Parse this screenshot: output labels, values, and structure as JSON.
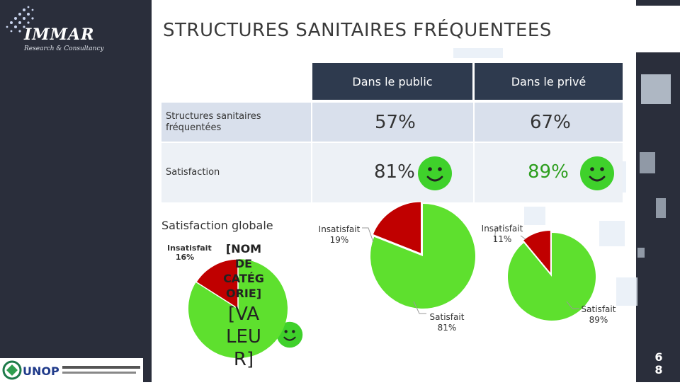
{
  "brand": {
    "logo": "IMMAR",
    "tagline": "Research & Consultancy",
    "partner_logo": "UNOP"
  },
  "title": "STRUCTURES SANITAIRES FRÉQUENTEES",
  "table": {
    "headers": [
      "Dans le public",
      "Dans le privé"
    ],
    "rows": [
      {
        "label": "Structures sanitaires fréquentées",
        "values": [
          "57%",
          "67%"
        ]
      },
      {
        "label": "Satisfaction",
        "values": [
          "81%",
          "89%"
        ]
      }
    ]
  },
  "global": {
    "title": "Satisfaction globale",
    "category_placeholder": "[NOM DE CATÉG ORIE]",
    "value_placeholder": "[VA LEU R]"
  },
  "colors": {
    "satisfied": "#5ee02e",
    "unsatisfied": "#c00000",
    "header": "#2e3a4e",
    "smiley": "#3fd12b"
  },
  "chart_data": [
    {
      "type": "pie",
      "title": "Satisfaction globale",
      "slices": [
        {
          "label": "Insatisfait",
          "value": 16
        },
        {
          "label": "[NOM DE CATÉGORIE]",
          "value": 84
        }
      ]
    },
    {
      "type": "pie",
      "slices": [
        {
          "label": "Insatisfait",
          "value": 19
        },
        {
          "label": "Satisfait",
          "value": 81
        }
      ]
    },
    {
      "type": "pie",
      "slices": [
        {
          "label": "Insatisfait",
          "value": 11
        },
        {
          "label": "Satisfait",
          "value": 89
        }
      ]
    }
  ],
  "page_number": "68"
}
